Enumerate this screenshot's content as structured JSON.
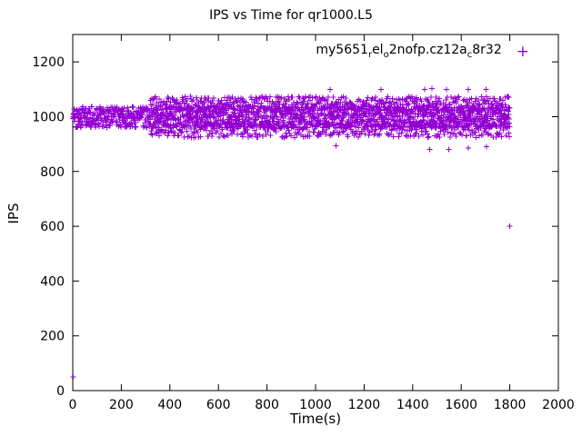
{
  "chart_data": {
    "type": "scatter",
    "title": "IPS vs Time for qr1000.L5",
    "xlabel": "Time(s)",
    "ylabel": "IPS",
    "xlim": [
      0,
      2000
    ],
    "ylim": [
      0,
      1300
    ],
    "xticks": [
      0,
      200,
      400,
      600,
      800,
      1000,
      1200,
      1400,
      1600,
      1800,
      2000
    ],
    "yticks": [
      0,
      200,
      400,
      600,
      800,
      1000,
      1200
    ],
    "grid": false,
    "marker": "plus",
    "marker_color": "#9400D3",
    "legend": {
      "position": "top-right-inside",
      "label_plain": "my5651_rel_o2nofp.cz12a_c8r32",
      "label_parts": [
        {
          "t": "my5651"
        },
        {
          "s": "r"
        },
        {
          "t": "el"
        },
        {
          "s": "o"
        },
        {
          "t": "2nofp.cz12a"
        },
        {
          "s": "c"
        },
        {
          "t": "8r32"
        }
      ],
      "marker_glyph": "+"
    },
    "series": [
      {
        "name": "my5651_rel_o2nofp.cz12a_c8r32",
        "bands": [
          {
            "y": 998,
            "y_jitter": 3,
            "x_start": 0,
            "x_end": 1800,
            "points": 1600
          },
          {
            "y": 1048,
            "y_jitter": 2,
            "x_start": 320,
            "x_end": 1800,
            "points": 520
          },
          {
            "y": 950,
            "y_jitter": 2,
            "x_start": 320,
            "x_end": 1800,
            "points": 430
          }
        ],
        "outlier_points": [
          [
            2,
            50
          ],
          [
            1060,
            1100
          ],
          [
            1270,
            1100
          ],
          [
            1450,
            1100
          ],
          [
            1480,
            1103
          ],
          [
            1540,
            1100
          ],
          [
            1630,
            1100
          ],
          [
            1703,
            1100
          ],
          [
            1085,
            893
          ],
          [
            1470,
            880
          ],
          [
            1548,
            880
          ],
          [
            1630,
            885
          ],
          [
            1705,
            890
          ],
          [
            1800,
            600
          ]
        ]
      }
    ]
  }
}
